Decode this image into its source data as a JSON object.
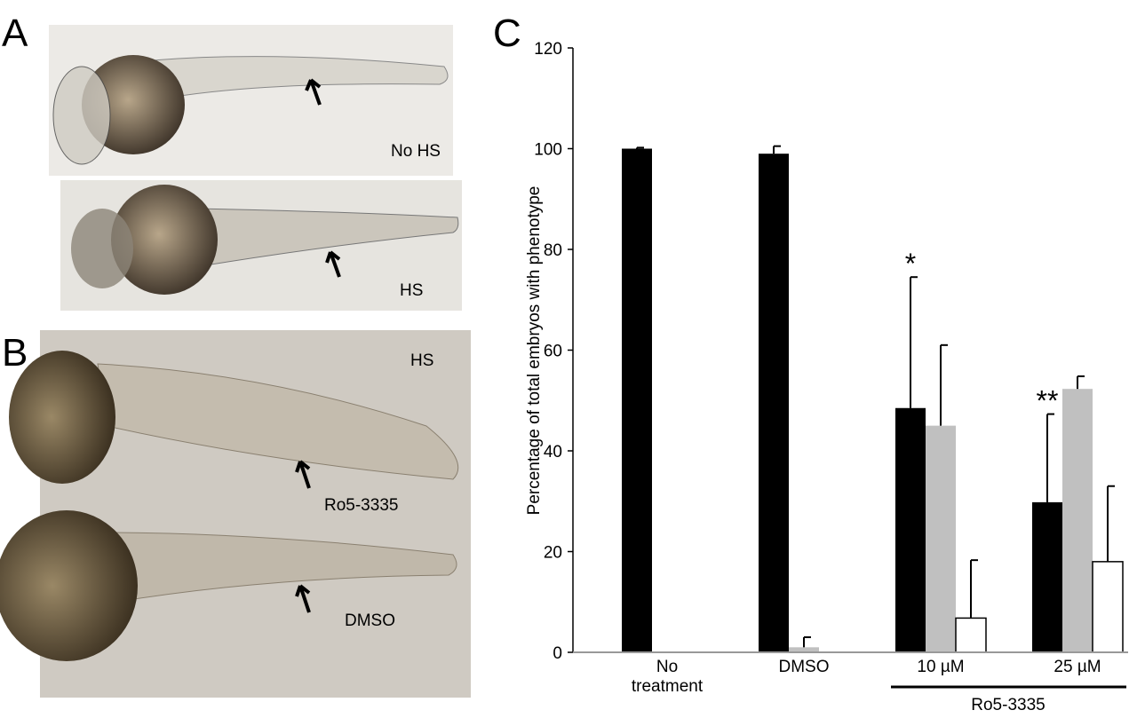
{
  "panels": {
    "a": {
      "label": "A",
      "top": "No HS",
      "bottom": "HS"
    },
    "b": {
      "label": "B",
      "corner": "HS",
      "top": "Ro5-3335",
      "bottom": "DMSO"
    },
    "c": {
      "label": "C"
    }
  },
  "chart_data": {
    "type": "bar",
    "y_label": "Percentage of total embryos with phenotype",
    "categories": [
      "No treatment",
      "DMSO",
      "10 µM",
      "25 µM"
    ],
    "series": [
      {
        "color": "#000000",
        "values": [
          100,
          99,
          48.5,
          29.8
        ],
        "errors": [
          0.2,
          1.5,
          26,
          17.5
        ]
      },
      {
        "color": "#c0c0c0",
        "values": [
          0,
          1,
          45,
          52.3
        ],
        "errors": [
          0,
          2,
          16,
          2.5
        ]
      },
      {
        "color": "#ffffff",
        "values": [
          0,
          0,
          6.8,
          18
        ],
        "errors": [
          0,
          0,
          11.5,
          15
        ]
      }
    ],
    "annotations": [
      {
        "category": 2,
        "text": "*"
      },
      {
        "category": 3,
        "text": "**"
      }
    ],
    "group_label": "Ro5-3335",
    "ylim": [
      0,
      120
    ],
    "yticks": [
      0,
      20,
      40,
      60,
      80,
      100,
      120
    ]
  }
}
